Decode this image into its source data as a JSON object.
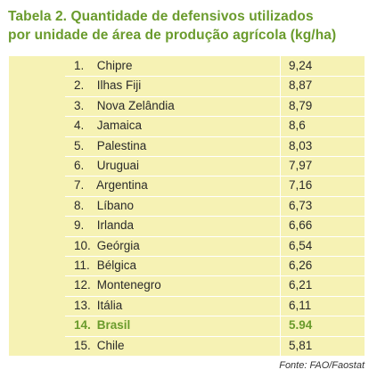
{
  "title": {
    "line1": "Tabela 2. Quantidade de defensivos utilizados",
    "line2": "por unidade de área de produção agrícola (kg/ha)"
  },
  "rows": [
    {
      "num": "1.",
      "country": "Chipre",
      "value": "9,24"
    },
    {
      "num": "2.",
      "country": "Ilhas Fiji",
      "value": "8,87"
    },
    {
      "num": "3.",
      "country": "Nova Zelândia",
      "value": "8,79"
    },
    {
      "num": "4.",
      "country": "Jamaica",
      "value": "8,6"
    },
    {
      "num": "5.",
      "country": "Palestina",
      "value": "8,03"
    },
    {
      "num": "6.",
      "country": "Uruguai",
      "value": "7,97"
    },
    {
      "num": "7.",
      "country": "Argentina",
      "value": "7,16"
    },
    {
      "num": "8.",
      "country": "Líbano",
      "value": "6,73"
    },
    {
      "num": "9.",
      "country": "Irlanda",
      "value": "6,66"
    },
    {
      "num": "10.",
      "country": "Geórgia",
      "value": "6,54"
    },
    {
      "num": "11.",
      "country": "Bélgica",
      "value": "6,26"
    },
    {
      "num": "12.",
      "country": "Montenegro",
      "value": "6,21"
    },
    {
      "num": "13.",
      "country": "Itália",
      "value": "6,11"
    },
    {
      "num": "14.",
      "country": "Brasil",
      "value": "5.94"
    },
    {
      "num": "15.",
      "country": "Chile",
      "value": "5,81"
    }
  ],
  "highlight_row": "14.",
  "source": "Fonte: FAO/Faostat",
  "colors": {
    "accent": "#6a9b2c",
    "table_background": "#f6f2b4",
    "text": "#2a2a2a"
  }
}
